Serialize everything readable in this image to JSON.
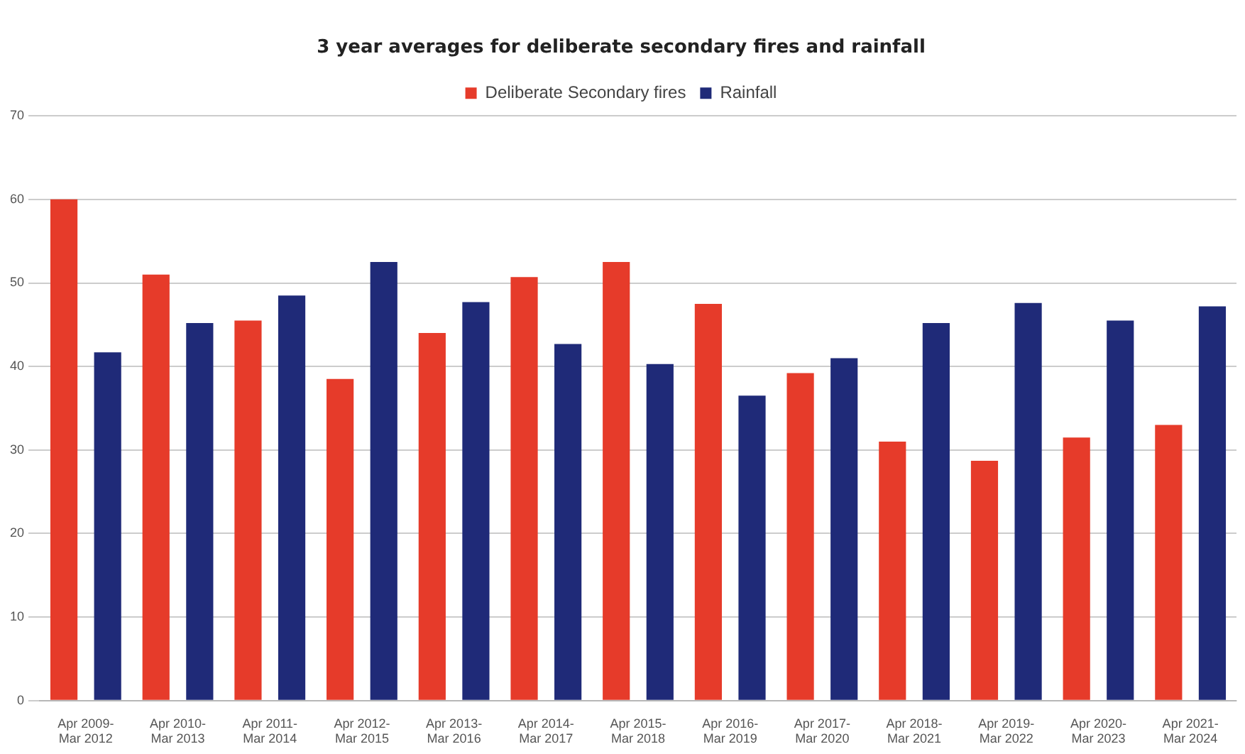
{
  "chart_data": {
    "type": "bar",
    "title": "3 year averages for deliberate secondary fires and rainfall",
    "categories": [
      "Apr 2009- Mar 2012",
      "Apr 2010- Mar 2013",
      "Apr 2011- Mar 2014",
      "Apr 2012- Mar 2015",
      "Apr 2013- Mar 2016",
      "Apr 2014- Mar 2017",
      "Apr 2015- Mar 2018",
      "Apr 2016- Mar 2019",
      "Apr 2017- Mar 2020",
      "Apr 2018- Mar 2021",
      "Apr 2019- Mar 2022",
      "Apr 2020- Mar 2023",
      "Apr 2021- Mar 2024"
    ],
    "series": [
      {
        "name": "Deliberate Secondary fires",
        "color": "#e63b2a",
        "values": [
          60,
          51,
          45.5,
          38.5,
          44,
          50.7,
          52.5,
          47.5,
          39.2,
          31,
          28.7,
          31.5,
          33
        ]
      },
      {
        "name": "Rainfall",
        "color": "#1f2a78",
        "values": [
          41.7,
          45.2,
          48.5,
          52.5,
          47.7,
          42.7,
          40.3,
          36.5,
          41,
          45.2,
          47.6,
          45.5,
          47.2
        ]
      }
    ],
    "ylim": [
      0,
      70
    ],
    "yticks": [
      0,
      10,
      20,
      30,
      40,
      50,
      60,
      70
    ],
    "grid": "y",
    "legend": "top"
  }
}
